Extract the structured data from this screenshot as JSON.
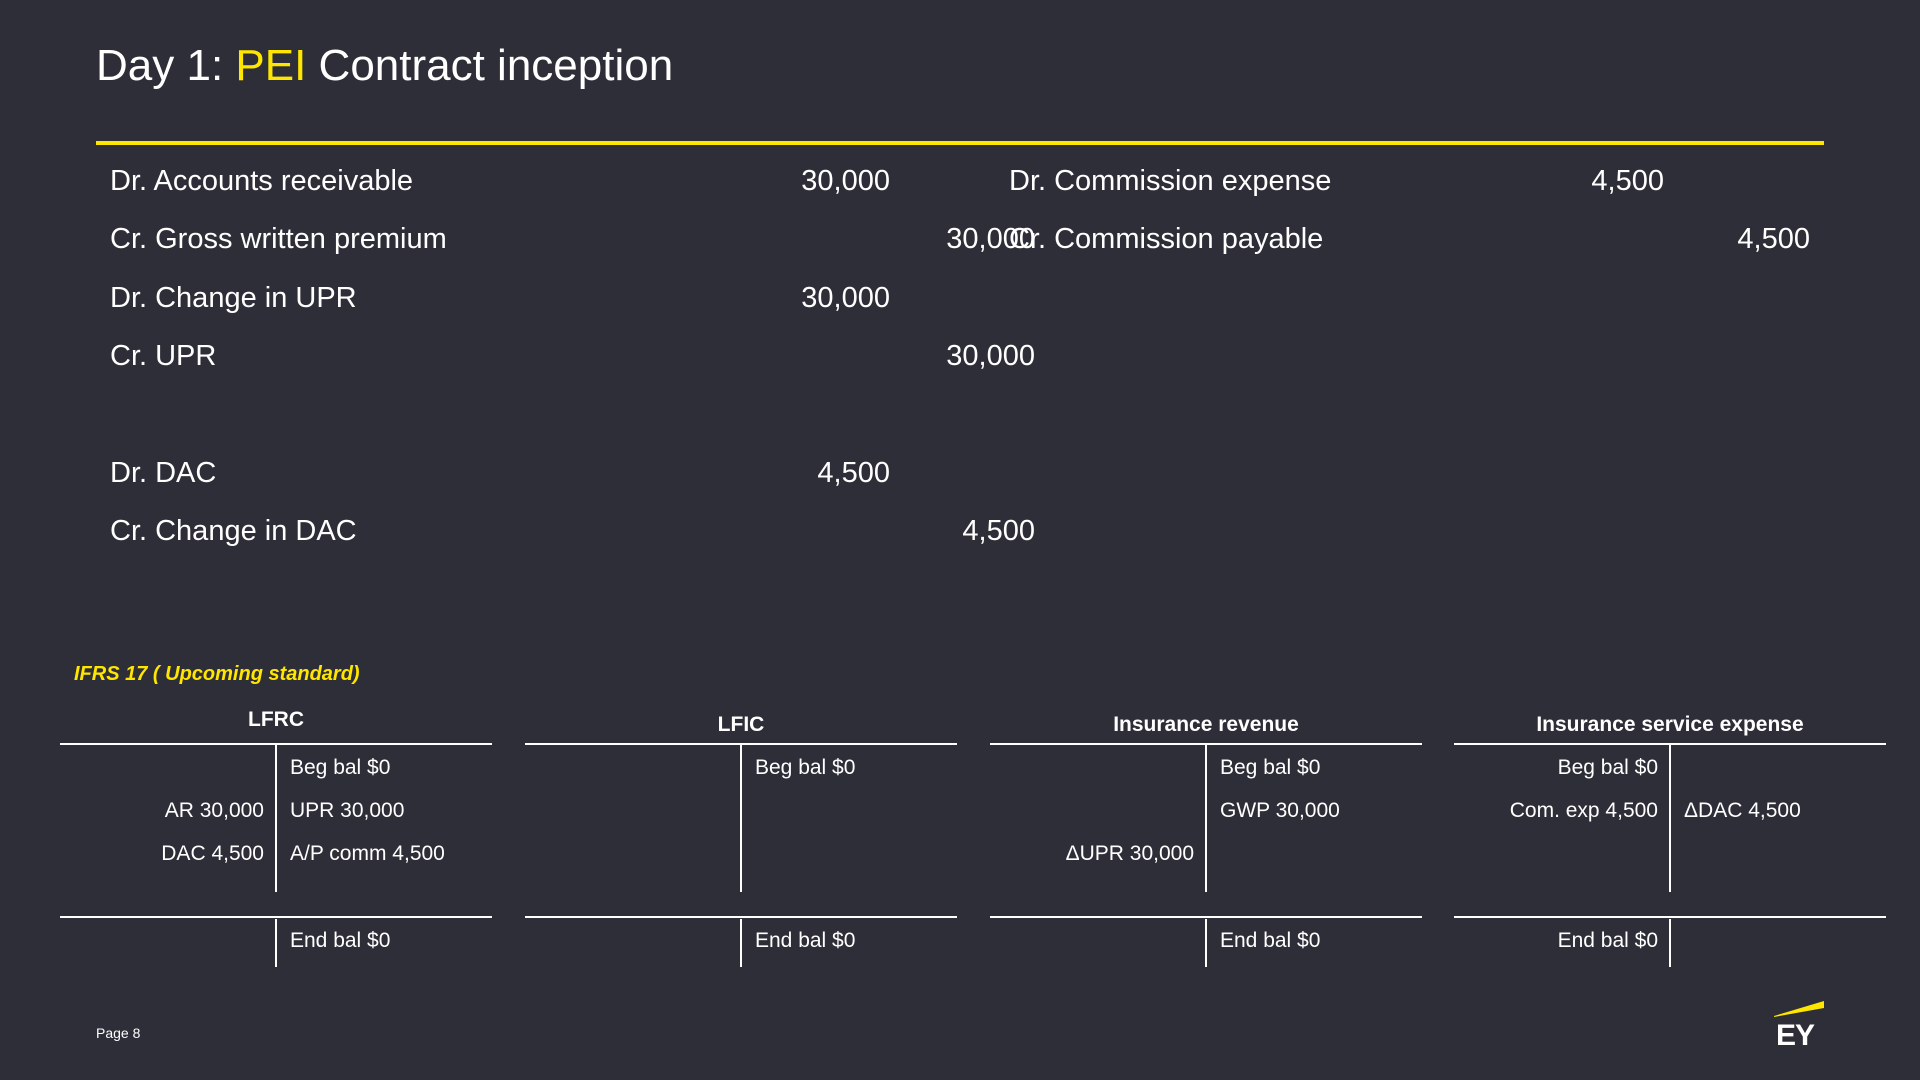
{
  "title": {
    "prefix": "Day 1: ",
    "highlight": "PEI",
    "suffix": " Contract inception"
  },
  "colors": {
    "background": "#2e2e38",
    "accent": "#ffe600",
    "text": "#ffffff"
  },
  "journal_left": [
    {
      "label": "Dr. Accounts receivable",
      "debit": "30,000",
      "credit": ""
    },
    {
      "label": "Cr. Gross written premium",
      "debit": "",
      "credit": "30,000"
    },
    {
      "label": "Dr. Change in UPR",
      "debit": "30,000",
      "credit": ""
    },
    {
      "label": "Cr. UPR",
      "debit": "",
      "credit": "30,000"
    },
    {
      "label": "Dr. DAC",
      "debit": "4,500",
      "credit": ""
    },
    {
      "label": "Cr. Change in DAC",
      "debit": "",
      "credit": "4,500"
    }
  ],
  "journal_right": [
    {
      "label": "Dr. Commission expense",
      "debit": "4,500",
      "credit": ""
    },
    {
      "label": "Cr. Commission payable",
      "debit": "",
      "credit": "4,500"
    }
  ],
  "ifrs_label": "IFRS 17 ( Upcoming standard)",
  "t_accounts": [
    {
      "title": "LFRC",
      "rows": [
        {
          "left": "",
          "right": "Beg bal $0"
        },
        {
          "left": "AR 30,000",
          "right": "UPR 30,000"
        },
        {
          "left": "DAC 4,500",
          "right": "A/P comm 4,500"
        }
      ],
      "end": {
        "left": "",
        "right": "End bal $0"
      }
    },
    {
      "title": "LFIC",
      "rows": [
        {
          "left": "",
          "right": "Beg bal $0"
        },
        {
          "left": "",
          "right": ""
        },
        {
          "left": "",
          "right": ""
        }
      ],
      "end": {
        "left": "",
        "right": "End bal $0"
      }
    },
    {
      "title": "Insurance revenue",
      "rows": [
        {
          "left": "",
          "right": "Beg bal $0"
        },
        {
          "left": "",
          "right": "GWP 30,000"
        },
        {
          "left": "ΔUPR 30,000",
          "right": ""
        }
      ],
      "end": {
        "left": "",
        "right": "End bal $0"
      }
    },
    {
      "title": "Insurance service expense",
      "rows": [
        {
          "left": "Beg bal $0",
          "right": ""
        },
        {
          "left": "Com. exp 4,500",
          "right": "ΔDAC 4,500"
        },
        {
          "left": "",
          "right": ""
        }
      ],
      "end": {
        "left": "End bal $0",
        "right": ""
      }
    }
  ],
  "footer": {
    "page": "Page 8",
    "logo_icon": "ey-logo-icon",
    "logo_text": "EY"
  }
}
